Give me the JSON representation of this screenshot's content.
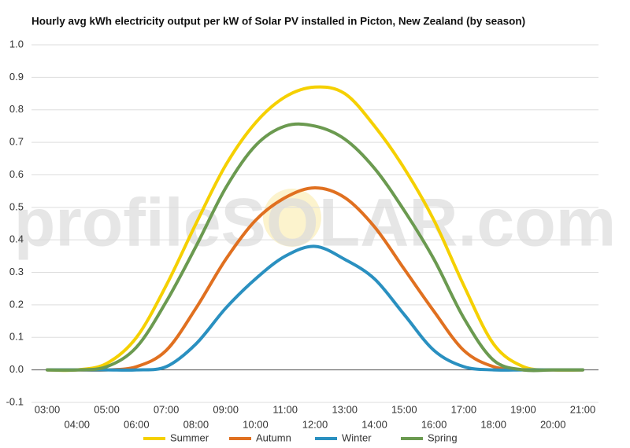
{
  "chart_data": {
    "type": "line",
    "title": "Hourly avg kWh electricity output per kW of Solar PV installed in Picton, New Zealand (by season)",
    "watermark": "profileSOLAR.com",
    "categories": [
      "03:00",
      "04:00",
      "05:00",
      "06:00",
      "07:00",
      "08:00",
      "09:00",
      "10:00",
      "11:00",
      "12:00",
      "13:00",
      "14:00",
      "15:00",
      "16:00",
      "17:00",
      "18:00",
      "19:00",
      "20:00",
      "21:00"
    ],
    "series": [
      {
        "name": "Summer",
        "color": "#f5d000",
        "values": [
          0,
          0,
          0.02,
          0.1,
          0.26,
          0.45,
          0.63,
          0.76,
          0.84,
          0.87,
          0.85,
          0.75,
          0.62,
          0.46,
          0.26,
          0.08,
          0.01,
          0,
          0
        ]
      },
      {
        "name": "Autumn",
        "color": "#e07020",
        "values": [
          0,
          0,
          0,
          0.01,
          0.06,
          0.19,
          0.34,
          0.46,
          0.53,
          0.56,
          0.53,
          0.44,
          0.31,
          0.18,
          0.06,
          0.01,
          0,
          0,
          0
        ]
      },
      {
        "name": "Winter",
        "color": "#2a90c0",
        "values": [
          0,
          0,
          0,
          0,
          0.01,
          0.08,
          0.19,
          0.28,
          0.35,
          0.38,
          0.34,
          0.28,
          0.17,
          0.06,
          0.01,
          0,
          0,
          0,
          0
        ]
      },
      {
        "name": "Spring",
        "color": "#6b9a50",
        "values": [
          0,
          0,
          0.01,
          0.07,
          0.21,
          0.38,
          0.56,
          0.69,
          0.75,
          0.75,
          0.71,
          0.62,
          0.49,
          0.34,
          0.16,
          0.03,
          0,
          0,
          0
        ]
      }
    ],
    "ylim": [
      -0.1,
      1.0
    ],
    "yticks": [
      -0.1,
      {
        "value": 0,
        "label": "0.0"
      },
      0.1,
      0.2,
      0.3,
      0.4,
      0.5,
      0.6,
      0.7,
      0.8,
      0.9,
      {
        "value": 1,
        "label": "1.0"
      }
    ],
    "grid": true,
    "legend": "bottom"
  }
}
